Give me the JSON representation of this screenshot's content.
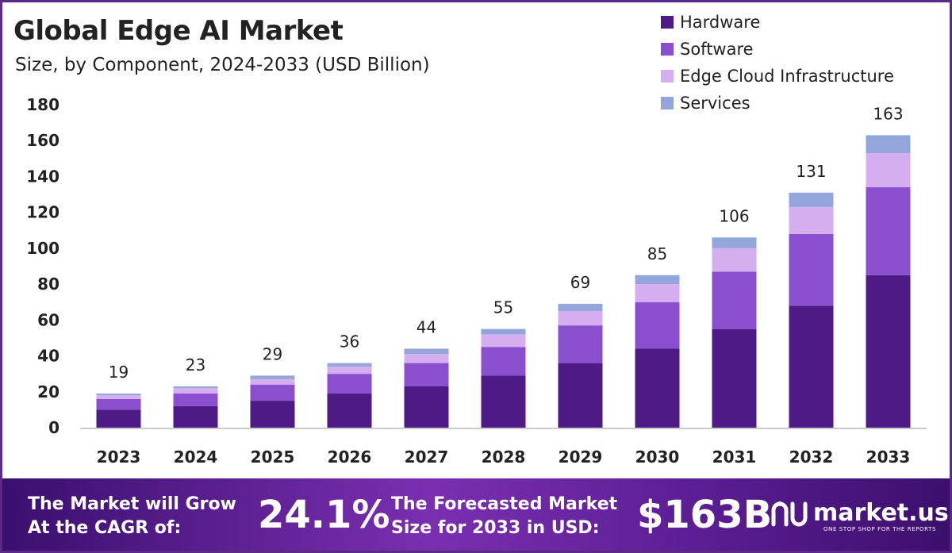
{
  "header": {
    "title": "Global Edge AI Market",
    "subtitle": "Size, by Component, 2024-2033 (USD Billion)"
  },
  "legend": [
    {
      "label": "Hardware",
      "color": "#4e1a85"
    },
    {
      "label": "Software",
      "color": "#8a4fcf"
    },
    {
      "label": "Edge Cloud Infrastructure",
      "color": "#d5aef0"
    },
    {
      "label": "Services",
      "color": "#93a6db"
    }
  ],
  "chart_data": {
    "type": "bar",
    "stacked": true,
    "categories": [
      "2023",
      "2024",
      "2025",
      "2026",
      "2027",
      "2028",
      "2029",
      "2030",
      "2031",
      "2032",
      "2033"
    ],
    "series": [
      {
        "name": "Hardware",
        "values": [
          10,
          12,
          15,
          19,
          23,
          29,
          36,
          44,
          55,
          68,
          85
        ]
      },
      {
        "name": "Software",
        "values": [
          6,
          7,
          9,
          11,
          13,
          16,
          21,
          26,
          32,
          40,
          49
        ]
      },
      {
        "name": "Edge Cloud Infrastructure",
        "values": [
          2,
          3,
          3,
          4,
          5,
          7,
          8,
          10,
          13,
          15,
          19
        ]
      },
      {
        "name": "Services",
        "values": [
          1,
          1,
          2,
          2,
          3,
          3,
          4,
          5,
          6,
          8,
          10
        ]
      }
    ],
    "totals": [
      19,
      23,
      29,
      36,
      44,
      55,
      69,
      85,
      106,
      131,
      163
    ],
    "yticks": [
      0,
      20,
      40,
      60,
      80,
      100,
      120,
      140,
      160,
      180
    ],
    "ylim": [
      0,
      180
    ],
    "grid": false,
    "legend_position": "top-right",
    "colors": [
      "#4e1a85",
      "#8a4fcf",
      "#d5aef0",
      "#93a6db"
    ]
  },
  "footer": {
    "cagr_line1": "The Market will Grow",
    "cagr_line2": "At the CAGR of:",
    "cagr_value": "24.1%",
    "forecast_line1": "The Forecasted Market",
    "forecast_line2": "Size for 2033 in USD:",
    "forecast_value": "$163B",
    "brand": "market.us",
    "brand_tagline": "ONE STOP SHOP FOR THE REPORTS"
  }
}
